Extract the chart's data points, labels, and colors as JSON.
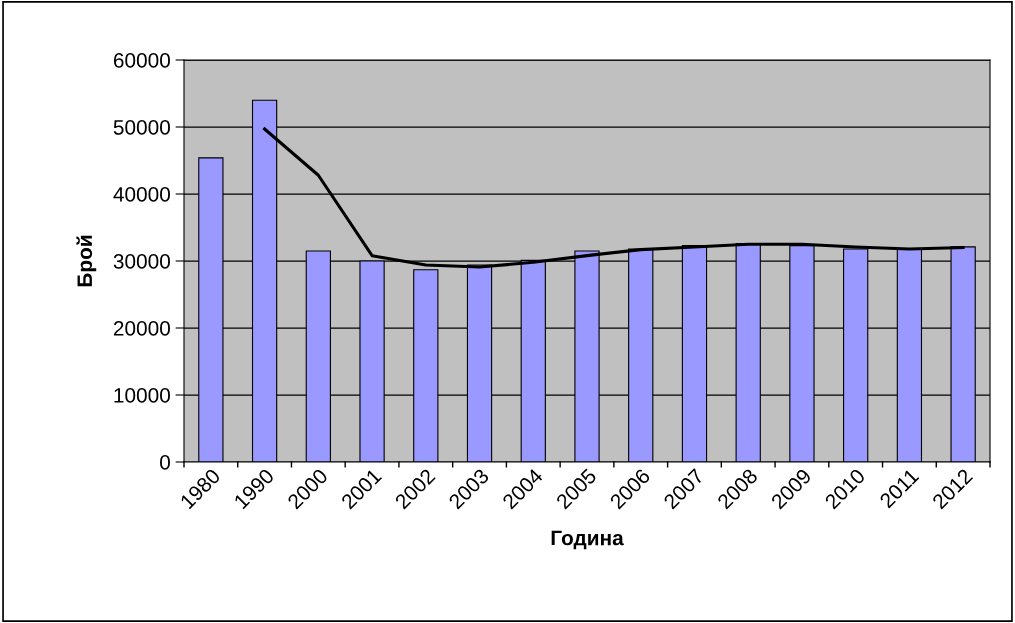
{
  "chart_data": {
    "type": "bar",
    "xlabel": "Година",
    "ylabel": "Брой",
    "categories": [
      "1980",
      "1990",
      "2000",
      "2001",
      "2002",
      "2003",
      "2004",
      "2005",
      "2006",
      "2007",
      "2008",
      "2009",
      "2010",
      "2011",
      "2012"
    ],
    "series": [
      {
        "color": "#9999ff",
        "values": [
          45400,
          54000,
          31500,
          30000,
          28700,
          29400,
          30100,
          31500,
          31800,
          32300,
          32600,
          32300,
          31800,
          31800,
          32100
        ]
      },
      {
        "type": "line",
        "color": "#000000",
        "values": [
          null,
          49700,
          42800,
          30800,
          29400,
          29100,
          29800,
          30800,
          31700,
          32100,
          32500,
          32500,
          32100,
          31800,
          32000
        ]
      }
    ],
    "ylim": [
      0,
      60000
    ],
    "yticks": [
      0,
      10000,
      20000,
      30000,
      40000,
      50000,
      60000
    ],
    "grid": "y",
    "legend": false
  }
}
